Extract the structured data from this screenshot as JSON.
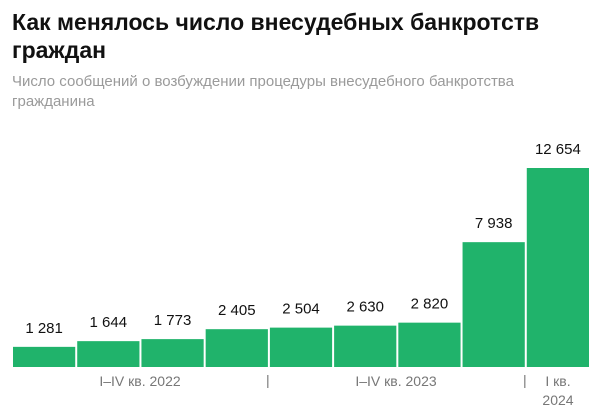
{
  "chart_data": {
    "type": "bar",
    "title": "Как менялось число внесудебных банкротств граждан",
    "subtitle": "Число сообщений о возбуждении процедуры внесудебного банкротства гражданина",
    "categories": [
      null,
      null,
      null,
      null,
      null,
      null,
      null,
      null,
      null
    ],
    "category_groups": [
      "I–IV кв. 2022",
      "I–IV кв. 2023",
      "I кв. 2024"
    ],
    "values": [
      1281,
      1644,
      1773,
      2405,
      2504,
      2630,
      2820,
      7938,
      12654
    ],
    "value_labels": [
      "1 281",
      "1 644",
      "1 773",
      "2 405",
      "2 504",
      "2 630",
      "2 820",
      "7 938",
      "12 654"
    ],
    "color": "#20b36b"
  }
}
